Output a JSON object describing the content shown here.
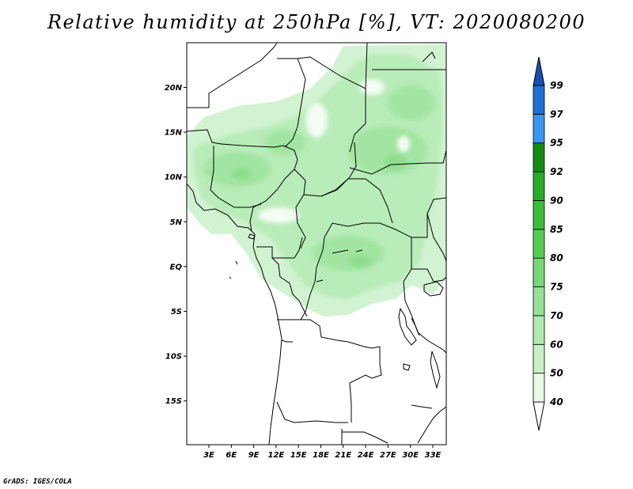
{
  "title": "Relative humidity at 250hPa [%], VT: 2020080200",
  "credit": "GrADS: IGES/COLA",
  "variable": "Relative humidity",
  "level": "250hPa",
  "units": "%",
  "valid_time": "2020080200",
  "lat_labels": [
    "20N",
    "15N",
    "10N",
    "5N",
    "EQ",
    "5S",
    "10S",
    "15S"
  ],
  "lon_labels": [
    "3E",
    "6E",
    "9E",
    "12E",
    "15E",
    "18E",
    "21E",
    "24E",
    "27E",
    "30E",
    "33E"
  ],
  "colorbar": {
    "levels": [
      "40",
      "50",
      "60",
      "70",
      "75",
      "80",
      "85",
      "90",
      "92",
      "95",
      "97",
      "99"
    ],
    "colors": [
      "#ffffff",
      "#e6fae6",
      "#c8f0c8",
      "#b0eab0",
      "#96e196",
      "#78d778",
      "#55cd55",
      "#3cbe3c",
      "#28aa28",
      "#148c14",
      "#3c96f0",
      "#1e6ed7",
      "#1450b4"
    ]
  }
}
